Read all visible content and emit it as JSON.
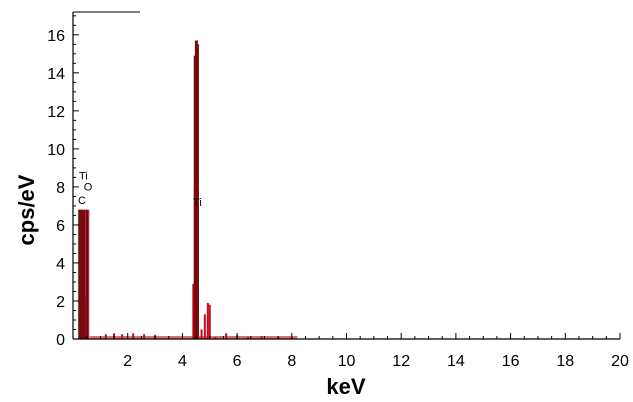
{
  "chart_data": {
    "type": "bar",
    "xlabel": "keV",
    "ylabel": "cps/eV",
    "xlim": [
      0,
      20
    ],
    "ylim": [
      0,
      17.2
    ],
    "x_ticks": [
      2,
      4,
      6,
      8,
      10,
      12,
      14,
      16,
      18,
      20
    ],
    "y_ticks": [
      0,
      2,
      4,
      6,
      8,
      10,
      12,
      14,
      16
    ],
    "grid": false,
    "element_lines": [
      {
        "label": "C",
        "energy": 0.28,
        "height": 6.8,
        "color": "#3cb371"
      },
      {
        "label": "O",
        "energy": 0.52,
        "height": 6.8,
        "color": "#d8a0e0"
      },
      {
        "label": "Ti",
        "energy": 0.45,
        "height": 2.2,
        "color": "#e0148c"
      },
      {
        "label": "Ti",
        "energy": 4.51,
        "height": 8.0,
        "color": "#e0148c"
      }
    ],
    "peak_labels": [
      {
        "text": "Ti",
        "x": 0.38,
        "y": 8.4
      },
      {
        "text": "O",
        "x": 0.55,
        "y": 7.8
      },
      {
        "text": "C",
        "x": 0.33,
        "y": 7.1
      },
      {
        "text": "Ti",
        "x": 4.55,
        "y": 7.0
      }
    ],
    "spectrum": [
      {
        "x": 0.25,
        "y": 6.8
      },
      {
        "x": 0.32,
        "y": 6.8
      },
      {
        "x": 0.4,
        "y": 6.8
      },
      {
        "x": 0.52,
        "y": 6.8
      },
      {
        "x": 1.2,
        "y": 0.25
      },
      {
        "x": 1.5,
        "y": 0.3
      },
      {
        "x": 1.8,
        "y": 0.25
      },
      {
        "x": 2.2,
        "y": 0.3
      },
      {
        "x": 2.6,
        "y": 0.25
      },
      {
        "x": 3.0,
        "y": 0.22
      },
      {
        "x": 4.4,
        "y": 2.9
      },
      {
        "x": 4.47,
        "y": 14.9
      },
      {
        "x": 4.51,
        "y": 15.7
      },
      {
        "x": 4.55,
        "y": 15.5
      },
      {
        "x": 4.7,
        "y": 0.5
      },
      {
        "x": 4.82,
        "y": 1.3
      },
      {
        "x": 4.93,
        "y": 1.9
      },
      {
        "x": 5.0,
        "y": 1.8
      },
      {
        "x": 5.2,
        "y": 0.1
      },
      {
        "x": 5.6,
        "y": 0.3
      },
      {
        "x": 6.0,
        "y": 0.2
      },
      {
        "x": 6.4,
        "y": 0.1
      },
      {
        "x": 6.9,
        "y": 0.15
      },
      {
        "x": 7.5,
        "y": 0.1
      },
      {
        "x": 8.0,
        "y": 0.1
      }
    ],
    "colors": {
      "spectrum_dark": "#7a0a0a",
      "spectrum_fill": "#c80a1e",
      "baseline": "#c84040",
      "axis": "#000000"
    }
  }
}
